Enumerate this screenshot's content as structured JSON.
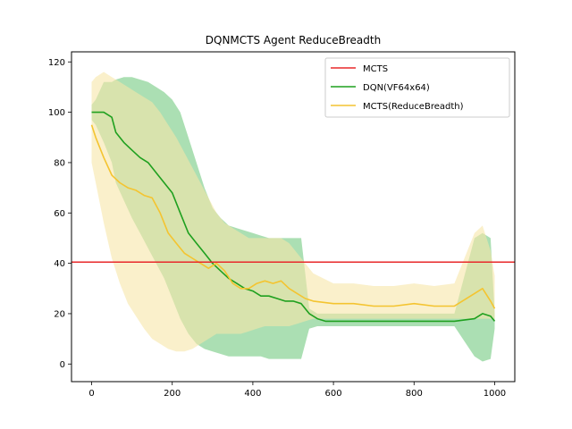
{
  "chart_data": {
    "type": "line",
    "title": "DQNMCTS Agent ReduceBreadth",
    "xlabel": "",
    "ylabel": "",
    "xlim": [
      -50,
      1050
    ],
    "ylim": [
      -7,
      124
    ],
    "x_ticks": [
      0,
      200,
      400,
      600,
      800,
      1000
    ],
    "y_ticks": [
      0,
      20,
      40,
      60,
      80,
      100,
      120
    ],
    "x_tick_labels": [
      "0",
      "200",
      "400",
      "600",
      "800",
      "1000"
    ],
    "y_tick_labels": [
      "0",
      "20",
      "40",
      "60",
      "80",
      "100",
      "120"
    ],
    "legend_position": "top-right",
    "grid": false,
    "series": [
      {
        "name": "MCTS",
        "color": "#e8282a",
        "kind": "hline",
        "value": 40.5
      },
      {
        "name": "DQN(VF64x64)",
        "color": "#1fa01f",
        "band_color": "#8fd49a",
        "x": [
          0,
          10,
          30,
          50,
          60,
          80,
          100,
          120,
          140,
          160,
          180,
          200,
          220,
          240,
          260,
          280,
          300,
          320,
          340,
          360,
          380,
          400,
          420,
          440,
          460,
          480,
          500,
          520,
          540,
          560,
          580,
          600,
          650,
          700,
          750,
          800,
          850,
          900,
          950,
          970,
          990,
          1000
        ],
        "values": [
          100,
          100,
          100,
          98,
          92,
          88,
          85,
          82,
          80,
          76,
          72,
          68,
          60,
          52,
          48,
          44,
          40,
          37,
          34,
          32,
          30,
          29,
          27,
          27,
          26,
          25,
          25,
          24,
          20,
          18,
          17,
          17,
          17,
          17,
          17,
          17,
          17,
          17,
          18,
          20,
          19,
          17
        ],
        "lower": [
          97,
          95,
          88,
          80,
          72,
          65,
          58,
          52,
          46,
          40,
          34,
          26,
          18,
          12,
          8,
          6,
          5,
          4,
          3,
          3,
          3,
          3,
          3,
          2,
          2,
          2,
          2,
          2,
          14,
          15,
          15,
          15,
          15,
          15,
          15,
          15,
          15,
          15,
          3,
          1,
          2,
          14
        ],
        "upper": [
          103,
          105,
          112,
          112,
          113,
          114,
          114,
          113,
          112,
          110,
          108,
          105,
          100,
          90,
          80,
          70,
          62,
          58,
          55,
          54,
          53,
          52,
          51,
          50,
          50,
          50,
          50,
          50,
          22,
          20,
          20,
          20,
          20,
          20,
          20,
          20,
          20,
          20,
          50,
          52,
          50,
          20
        ]
      },
      {
        "name": "MCTS(ReduceBreadth)",
        "color": "#f4c430",
        "band_color": "#f7e6a8",
        "x": [
          0,
          10,
          30,
          50,
          70,
          90,
          110,
          130,
          150,
          170,
          190,
          210,
          230,
          250,
          270,
          290,
          310,
          330,
          350,
          370,
          390,
          410,
          430,
          450,
          470,
          490,
          510,
          530,
          550,
          600,
          650,
          700,
          750,
          800,
          850,
          900,
          950,
          970,
          990,
          1000
        ],
        "values": [
          95,
          90,
          82,
          75,
          72,
          70,
          69,
          67,
          66,
          60,
          52,
          48,
          44,
          42,
          40,
          38,
          40,
          37,
          32,
          30,
          30,
          32,
          33,
          32,
          33,
          30,
          28,
          26,
          25,
          24,
          24,
          23,
          23,
          24,
          23,
          23,
          28,
          30,
          25,
          22
        ],
        "lower": [
          80,
          72,
          56,
          42,
          32,
          24,
          19,
          14,
          10,
          8,
          6,
          5,
          5,
          6,
          8,
          10,
          12,
          12,
          12,
          12,
          13,
          14,
          15,
          15,
          15,
          15,
          16,
          17,
          18,
          18,
          18,
          18,
          18,
          18,
          18,
          18,
          18,
          18,
          18,
          18
        ],
        "upper": [
          112,
          114,
          116,
          114,
          112,
          110,
          108,
          106,
          104,
          100,
          95,
          90,
          84,
          78,
          72,
          66,
          60,
          56,
          54,
          52,
          50,
          50,
          50,
          50,
          50,
          48,
          44,
          40,
          36,
          32,
          32,
          31,
          31,
          32,
          31,
          32,
          52,
          55,
          45,
          35
        ]
      }
    ]
  }
}
